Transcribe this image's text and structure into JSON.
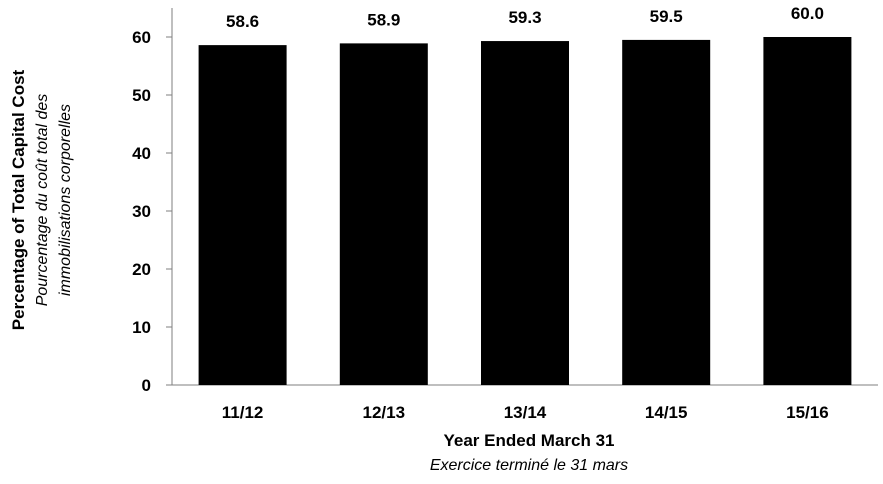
{
  "chart_data": {
    "type": "bar",
    "categories": [
      "11/12",
      "12/13",
      "13/14",
      "14/15",
      "15/16"
    ],
    "values": [
      58.6,
      58.9,
      59.3,
      59.5,
      60.0
    ],
    "data_labels": [
      "58.6",
      "58.9",
      "59.3",
      "59.5",
      "60.0"
    ],
    "ylim": [
      0,
      65
    ],
    "yticks": [
      0,
      10,
      20,
      30,
      40,
      50,
      60
    ],
    "ylabel": "Percentage of  Total Capital Cost",
    "ylabel_fr_line1": "Pourcentage du  coût  total des",
    "ylabel_fr_line2": "immobilisations corporelles",
    "xlabel": "Year Ended March 31",
    "xlabel_fr": "Exercice terminé le 31 mars",
    "grid": false,
    "legend": false,
    "bar_color": "#000000"
  }
}
